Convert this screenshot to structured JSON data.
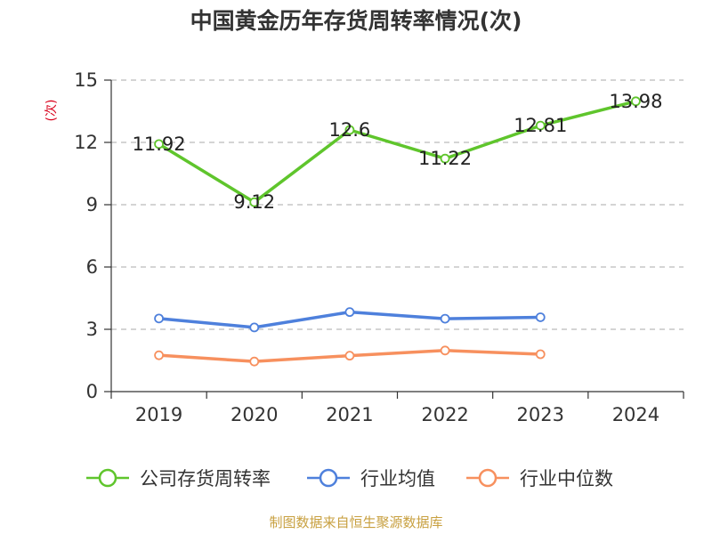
{
  "chart_data": {
    "type": "line",
    "title": "中国黄金历年存货周转率情况(次)",
    "ylabel": "(次)",
    "xlabel": "",
    "categories": [
      "2019",
      "2020",
      "2021",
      "2022",
      "2023",
      "2024"
    ],
    "y_ticks": [
      "0",
      "3",
      "6",
      "9",
      "12",
      "15"
    ],
    "ylim": [
      0,
      15
    ],
    "grid": "horizontal dashed",
    "legend_position": "bottom",
    "series": [
      {
        "name": "公司存货周转率",
        "values": [
          11.92,
          9.12,
          12.6,
          11.22,
          12.81,
          13.98
        ],
        "data_labels": [
          "11.92",
          "9.12",
          "12.6",
          "11.22",
          "12.81",
          "13.98"
        ],
        "color": "#5fc52c"
      },
      {
        "name": "行业均值",
        "values": [
          3.52,
          3.09,
          3.83,
          3.51,
          3.58,
          null
        ],
        "color": "#4e80dc"
      },
      {
        "name": "行业中位数",
        "values": [
          1.75,
          1.45,
          1.73,
          1.98,
          1.8,
          null
        ],
        "color": "#f7905e"
      }
    ]
  },
  "source_note": "制图数据来自恒生聚源数据库",
  "colors": {
    "title": "#333333",
    "axis": "#333333",
    "grid": "#bbbbbb",
    "ylabel": "#d9001b",
    "source": "#c8a040"
  }
}
